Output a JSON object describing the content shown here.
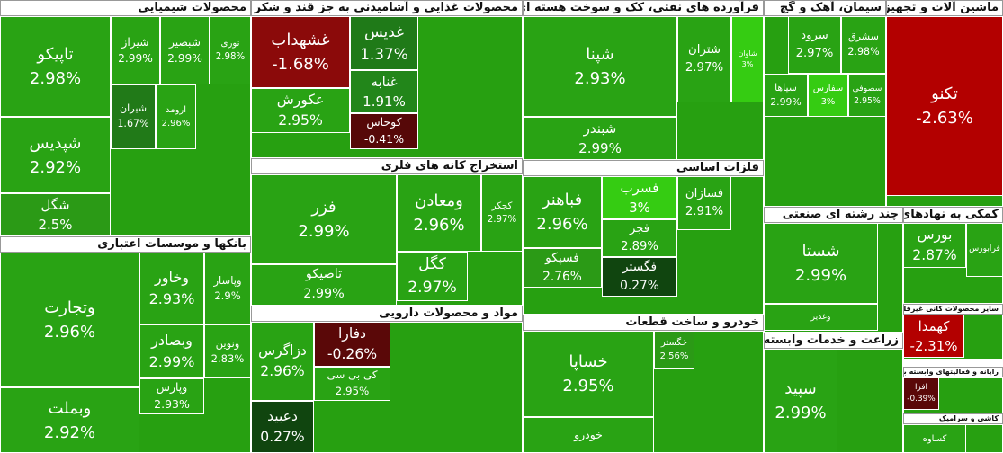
{
  "sectors": [
    {
      "title": "محصولات شیمیایی",
      "tiles": [
        {
          "name": "تاپیکو",
          "change": "2.98%",
          "color": "#29a314"
        },
        {
          "name": "شپدیس",
          "change": "2.92%",
          "color": "#29a314"
        },
        {
          "name": "شگل",
          "change": "2.5%",
          "color": "#2b9a16"
        },
        {
          "name": "شیراز",
          "change": "2.99%",
          "color": "#29a314"
        },
        {
          "name": "شبصیر",
          "change": "2.99%",
          "color": "#29a314"
        },
        {
          "name": "نوری",
          "change": "2.98%",
          "color": "#29a314"
        },
        {
          "name": "شیران",
          "change": "1.67%",
          "color": "#217a18"
        },
        {
          "name": "ارومد",
          "change": "2.96%",
          "color": "#29a314"
        }
      ]
    },
    {
      "title": "محصولات غذایی و آشامیدنی به جز قند و شکر",
      "tiles": [
        {
          "name": "غشهداب",
          "change": "-1.68%",
          "color": "#8b0a0a"
        },
        {
          "name": "غدیس",
          "change": "1.37%",
          "color": "#1f7a18"
        },
        {
          "name": "غنابه",
          "change": "1.91%",
          "color": "#22861a"
        },
        {
          "name": "عکورش",
          "change": "2.95%",
          "color": "#29a314"
        },
        {
          "name": "کوخاس",
          "change": "-0.41%",
          "color": "#560808"
        }
      ]
    },
    {
      "title": "فرآورده های نفتی، کک و سوخت هسته ای",
      "tiles": [
        {
          "name": "شپنا",
          "change": "2.93%",
          "color": "#29a314"
        },
        {
          "name": "شبندر",
          "change": "2.99%",
          "color": "#29a314"
        },
        {
          "name": "شتران",
          "change": "2.97%",
          "color": "#29a314"
        },
        {
          "name": "شاوان",
          "change": "3%",
          "color": "#35cc12"
        }
      ]
    },
    {
      "title": "سیمان، آهک و گچ",
      "tiles": [
        {
          "name": "سرود",
          "change": "2.97%",
          "color": "#29a314"
        },
        {
          "name": "سشرق",
          "change": "2.98%",
          "color": "#29a314"
        },
        {
          "name": "سپاها",
          "change": "2.99%",
          "color": "#29a314"
        },
        {
          "name": "سفارس",
          "change": "3%",
          "color": "#35cc12"
        },
        {
          "name": "سصوفی",
          "change": "2.95%",
          "color": "#29a314"
        }
      ]
    },
    {
      "title": "ماشین آلات و تجهیزات",
      "tiles": [
        {
          "name": "تکنو",
          "change": "-2.63%",
          "color": "#b30000"
        }
      ]
    },
    {
      "title": "بانکها و موسسات اعتباری",
      "tiles": [
        {
          "name": "وتجارت",
          "change": "2.96%",
          "color": "#29a314"
        },
        {
          "name": "وبملت",
          "change": "2.92%",
          "color": "#29a314"
        },
        {
          "name": "وخاور",
          "change": "2.93%",
          "color": "#29a314"
        },
        {
          "name": "وپاسار",
          "change": "2.9%",
          "color": "#29a314"
        },
        {
          "name": "وبصادر",
          "change": "2.99%",
          "color": "#29a314"
        },
        {
          "name": "ونوین",
          "change": "2.83%",
          "color": "#29a314"
        },
        {
          "name": "وپارس",
          "change": "2.93%",
          "color": "#29a314"
        }
      ]
    },
    {
      "title": "استخراج کانه های فلزی",
      "tiles": [
        {
          "name": "فزر",
          "change": "2.99%",
          "color": "#29a314"
        },
        {
          "name": "تاصیکو",
          "change": "2.99%",
          "color": "#29a314"
        },
        {
          "name": "ومعادن",
          "change": "2.96%",
          "color": "#29a314"
        },
        {
          "name": "کگل",
          "change": "2.97%",
          "color": "#29a314"
        },
        {
          "name": "کچکر",
          "change": "2.97%",
          "color": "#29a314"
        }
      ]
    },
    {
      "title": "مواد و محصولات دارویی",
      "tiles": [
        {
          "name": "دزاگرس",
          "change": "2.96%",
          "color": "#29a314"
        },
        {
          "name": "دعبید",
          "change": "0.27%",
          "color": "#10450f"
        },
        {
          "name": "دفارا",
          "change": "-0.26%",
          "color": "#5a0808"
        },
        {
          "name": "کی بی سی",
          "change": "2.95%",
          "color": "#29a314"
        }
      ]
    },
    {
      "title": "فلزات اساسی",
      "tiles": [
        {
          "name": "فباهنر",
          "change": "2.96%",
          "color": "#29a314"
        },
        {
          "name": "فسپکو",
          "change": "2.76%",
          "color": "#2b9a16"
        },
        {
          "name": "فسرب",
          "change": "3%",
          "color": "#35cc12"
        },
        {
          "name": "فجر",
          "change": "2.89%",
          "color": "#29a314"
        },
        {
          "name": "فگستر",
          "change": "0.27%",
          "color": "#10450f"
        },
        {
          "name": "فسازان",
          "change": "2.91%",
          "color": "#29a314"
        }
      ]
    },
    {
      "title": "خودرو و ساخت قطعات",
      "tiles": [
        {
          "name": "خساپا",
          "change": "2.95%",
          "color": "#29a314"
        },
        {
          "name": "خودرو",
          "color": "#29a314"
        },
        {
          "name": "خگستر",
          "change": "2.56%",
          "color": "#2b9a16"
        }
      ]
    },
    {
      "title": "چند رشته ای صنعتی",
      "tiles": [
        {
          "name": "شستا",
          "change": "2.99%",
          "color": "#29a314"
        },
        {
          "name": "وغدیر",
          "color": "#29a314"
        }
      ]
    },
    {
      "title": "کمکی به نهادهای مالی واسط",
      "tiles": [
        {
          "name": "بورس",
          "change": "2.87%",
          "color": "#29a314"
        },
        {
          "name": "فرابورس",
          "color": "#29a314"
        }
      ]
    },
    {
      "title": "زراعت و خدمات وابسته",
      "tiles": [
        {
          "name": "سپید",
          "change": "2.99%",
          "color": "#29a314"
        }
      ]
    },
    {
      "title": "سایر محصولات کانی غیرفلزی",
      "tiles": [
        {
          "name": "کهمدا",
          "change": "-2.31%",
          "color": "#b30000"
        }
      ]
    },
    {
      "title": "رایانه و فعالیتهای وابسته به آن",
      "tiles": [
        {
          "name": "افرا",
          "change": "-0.39%",
          "color": "#5a0808"
        }
      ]
    },
    {
      "title": "کاشی و سرامیک",
      "tiles": [
        {
          "name": "کساوه",
          "color": "#29a314"
        }
      ]
    }
  ]
}
